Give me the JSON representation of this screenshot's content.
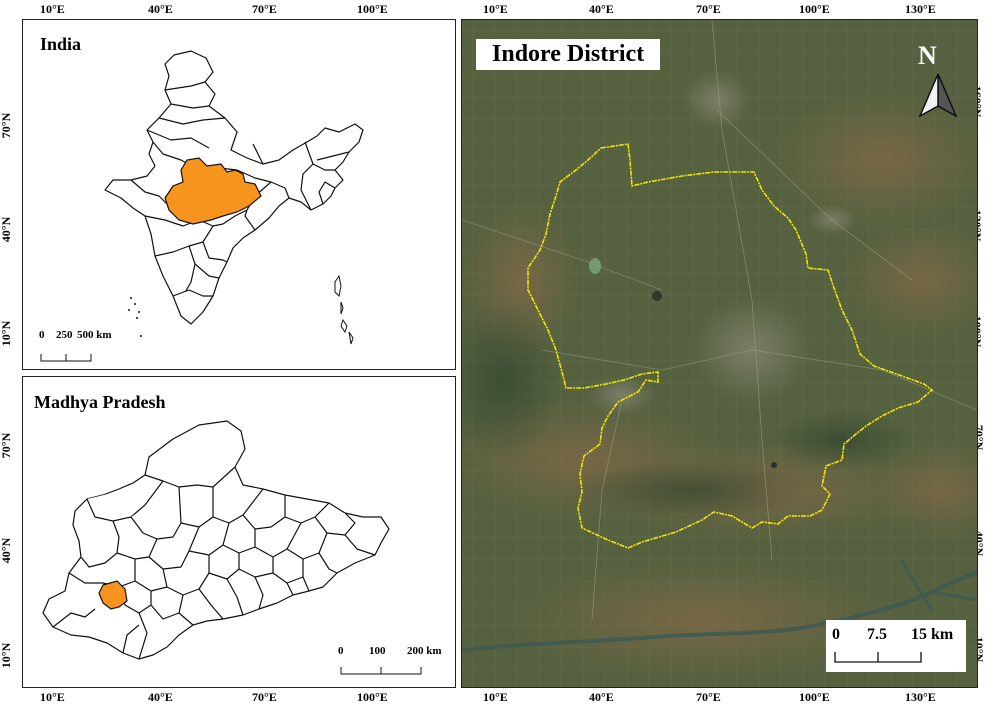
{
  "india_panel": {
    "title": "India",
    "scale": {
      "labels": [
        "0",
        "250",
        "500 km"
      ]
    },
    "highlight_color": "#f7941d"
  },
  "mp_panel": {
    "title": "Madhya Pradesh",
    "scale": {
      "labels": [
        "0",
        "100",
        "200 km"
      ]
    },
    "highlight_color": "#f7941d"
  },
  "satellite_panel": {
    "title": "Indore District",
    "north_label": "N",
    "boundary_color": "#f2e600",
    "scale": {
      "labels": [
        "0",
        "7.5",
        "15 km"
      ]
    }
  },
  "left_x_ticks": [
    "10°E",
    "40°E",
    "70°E",
    "100°E"
  ],
  "left_y_ticks_india": [
    "70°N",
    "40°N",
    "10°N"
  ],
  "left_y_ticks_mp": [
    "70°N",
    "40°N",
    "10°N"
  ],
  "right_x_ticks": [
    "10°E",
    "40°E",
    "70°E",
    "100°E",
    "130°E"
  ],
  "right_y_ticks": [
    "160°N",
    "130°N",
    "100°N",
    "70°N",
    "40°N",
    "10°N"
  ]
}
